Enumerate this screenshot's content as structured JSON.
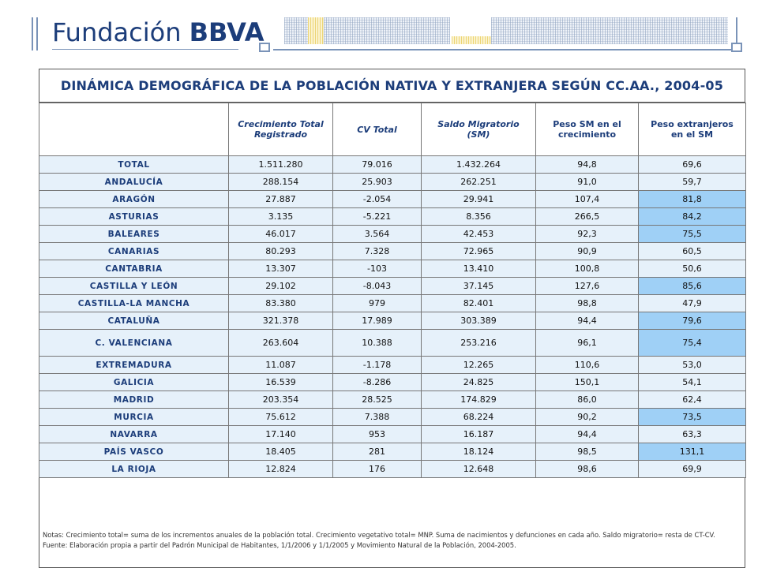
{
  "brand": {
    "name_regular": "Fundación ",
    "name_bold": "BBVA"
  },
  "title": "DINÁMICA DEMOGRÁFICA DE LA POBLACIÓN NATIVA Y EXTRANJERA SEGÚN CC.AA., 2004-05",
  "columns": [
    "",
    "Crecimiento Total Registrado",
    "CV Total",
    "Saldo Migratorio (SM)",
    "Peso SM en el crecimiento",
    "Peso extranjeros en el SM"
  ],
  "rows": [
    {
      "region": "TOTAL",
      "crecimiento": "1.511.280",
      "cv": "79.016",
      "saldo": "1.432.264",
      "peso_sm": "94,8",
      "peso_ext": "69,6"
    },
    {
      "region": "ANDALUCÍA",
      "crecimiento": "288.154",
      "cv": "25.903",
      "saldo": "262.251",
      "peso_sm": "91,0",
      "peso_ext": "59,7"
    },
    {
      "region": "ARAGÓN",
      "crecimiento": "27.887",
      "cv": "-2.054",
      "saldo": "29.941",
      "peso_sm": "107,4",
      "peso_ext": "81,8"
    },
    {
      "region": "ASTURIAS",
      "crecimiento": "3.135",
      "cv": "-5.221",
      "saldo": "8.356",
      "peso_sm": "266,5",
      "peso_ext": "84,2"
    },
    {
      "region": "BALEARES",
      "crecimiento": "46.017",
      "cv": "3.564",
      "saldo": "42.453",
      "peso_sm": "92,3",
      "peso_ext": "75,5"
    },
    {
      "region": "CANARIAS",
      "crecimiento": "80.293",
      "cv": "7.328",
      "saldo": "72.965",
      "peso_sm": "90,9",
      "peso_ext": "60,5"
    },
    {
      "region": "CANTABRIA",
      "crecimiento": "13.307",
      "cv": "-103",
      "saldo": "13.410",
      "peso_sm": "100,8",
      "peso_ext": "50,6"
    },
    {
      "region": "CASTILLA Y LEÓN",
      "crecimiento": "29.102",
      "cv": "-8.043",
      "saldo": "37.145",
      "peso_sm": "127,6",
      "peso_ext": "85,6"
    },
    {
      "region": "CASTILLA-LA MANCHA",
      "crecimiento": "83.380",
      "cv": "979",
      "saldo": "82.401",
      "peso_sm": "98,8",
      "peso_ext": "47,9"
    },
    {
      "region": "CATALUÑA",
      "crecimiento": "321.378",
      "cv": "17.989",
      "saldo": "303.389",
      "peso_sm": "94,4",
      "peso_ext": "79,6"
    },
    {
      "region": "C. VALENCIANA",
      "crecimiento": "263.604",
      "cv": "10.388",
      "saldo": "253.216",
      "peso_sm": "96,1",
      "peso_ext": "75,4"
    },
    {
      "region": "EXTREMADURA",
      "crecimiento": "11.087",
      "cv": "-1.178",
      "saldo": "12.265",
      "peso_sm": "110,6",
      "peso_ext": "53,0"
    },
    {
      "region": "GALICIA",
      "crecimiento": "16.539",
      "cv": "-8.286",
      "saldo": "24.825",
      "peso_sm": "150,1",
      "peso_ext": "54,1"
    },
    {
      "region": "MADRID",
      "crecimiento": "203.354",
      "cv": "28.525",
      "saldo": "174.829",
      "peso_sm": "86,0",
      "peso_ext": "62,4"
    },
    {
      "region": "MURCIA",
      "crecimiento": "75.612",
      "cv": "7.388",
      "saldo": "68.224",
      "peso_sm": "90,2",
      "peso_ext": "73,5"
    },
    {
      "region": "NAVARRA",
      "crecimiento": "17.140",
      "cv": "953",
      "saldo": "16.187",
      "peso_sm": "94,4",
      "peso_ext": "63,3"
    },
    {
      "region": "PAÍS VASCO",
      "crecimiento": "18.405",
      "cv": "281",
      "saldo": "18.124",
      "peso_sm": "98,5",
      "peso_ext": "131,1"
    },
    {
      "region": "LA RIOJA",
      "crecimiento": "12.824",
      "cv": "176",
      "saldo": "12.648",
      "peso_sm": "98,6",
      "peso_ext": "69,9"
    }
  ],
  "notes": "Notas: Crecimiento total= suma de los incrementos anuales de la población total. Crecimiento vegetativo total= MNP. Suma de nacimientos y defunciones en cada año. Saldo migratorio= resta de CT-CV.",
  "source": "Fuente: Elaboración propia a partir del Padrón Municipal de Habitantes, 1/1/2006 y 1/1/2005 y Movimiento Natural de la Población, 2004-2005.",
  "colors": {
    "brand": "#1c3d7a",
    "cell": "#e6f1fa",
    "highlight": "#9fd0f6"
  }
}
